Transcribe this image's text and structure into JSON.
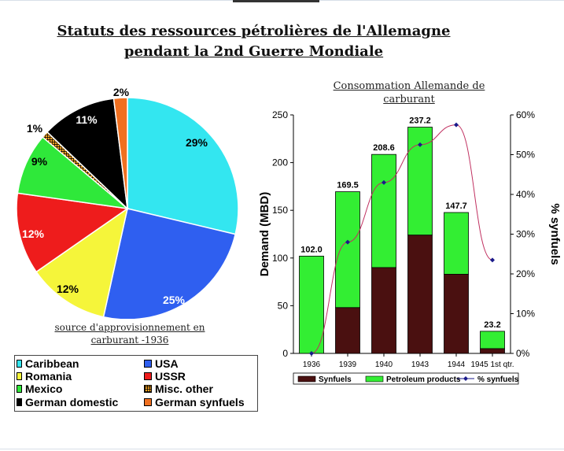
{
  "page": {
    "title": "Statuts des ressources pétrolières de l'Allemagne pendant la 2nd Guerre Mondiale"
  },
  "chart_data": [
    {
      "type": "pie",
      "caption": "source d'approvisionnement en carburant -1936",
      "slices": [
        {
          "name": "Caribbean",
          "value": 29,
          "label": "29%",
          "color": "#33e6f0"
        },
        {
          "name": "USA",
          "value": 25,
          "label": "25%",
          "color": "#2f5ff0"
        },
        {
          "name": "Romania",
          "value": 12,
          "label": "12%",
          "color": "#f5f53a"
        },
        {
          "name": "USSR",
          "value": 12,
          "label": "12%",
          "color": "#ee1c1c"
        },
        {
          "name": "Mexico",
          "value": 9,
          "label": "9%",
          "color": "#2fe83a"
        },
        {
          "name": "Misc. other",
          "value": 1,
          "label": "1%",
          "color": "#f0a020"
        },
        {
          "name": "German domestic",
          "value": 11,
          "label": "11%",
          "color": "#000000"
        },
        {
          "name": "German synfuels",
          "value": 2,
          "label": "2%",
          "color": "#f07020"
        }
      ],
      "legend": [
        {
          "label": "Caribbean",
          "color": "#33e6f0"
        },
        {
          "label": "USA",
          "color": "#2f5ff0"
        },
        {
          "label": "Romania",
          "color": "#f5f53a"
        },
        {
          "label": "USSR",
          "color": "#ee1c1c"
        },
        {
          "label": "Mexico",
          "color": "#2fe83a"
        },
        {
          "label": "Misc. other",
          "color": "#f0a020"
        },
        {
          "label": "German domestic",
          "color": "#000000"
        },
        {
          "label": "German synfuels",
          "color": "#f07020"
        }
      ]
    },
    {
      "type": "bar",
      "title": "Consommation Allemande de carburant",
      "ylabel": "Demand (MBD)",
      "y2label": "% synfuels",
      "categories": [
        "1936",
        "1939",
        "1940",
        "1943",
        "1944",
        "1945 1st qtr."
      ],
      "ylim": [
        0,
        250
      ],
      "yticks": [
        0,
        50,
        100,
        150,
        200,
        250
      ],
      "y2lim": [
        0,
        60
      ],
      "y2ticks": [
        "0%",
        "10%",
        "20%",
        "30%",
        "40%",
        "50%",
        "60%"
      ],
      "totals": [
        102.0,
        169.5,
        208.6,
        237.2,
        147.7,
        23.2
      ],
      "total_labels": [
        "102.0",
        "169.5",
        "208.6",
        "237.2",
        "147.7",
        "23.2"
      ],
      "series": [
        {
          "name": "Synfuels",
          "color": "#4a1010",
          "values": [
            0,
            48,
            90,
            124,
            83,
            5
          ]
        },
        {
          "name": "Petroleum products",
          "color": "#33ee33",
          "values": [
            102.0,
            121.5,
            118.6,
            113.2,
            64.7,
            18.2
          ]
        },
        {
          "name": "% synfuels",
          "type": "line",
          "color": "#1a1a8a",
          "line_color": "#c03060",
          "axis": "right",
          "values": [
            0,
            28,
            43,
            52.5,
            57.5,
            23.5
          ]
        }
      ],
      "legend": [
        {
          "label": "Synfuels",
          "color": "#4a1010"
        },
        {
          "label": "Petroleum products",
          "color": "#33ee33"
        },
        {
          "label": "% synfuels",
          "color": "#1a1a8a"
        }
      ]
    }
  ]
}
